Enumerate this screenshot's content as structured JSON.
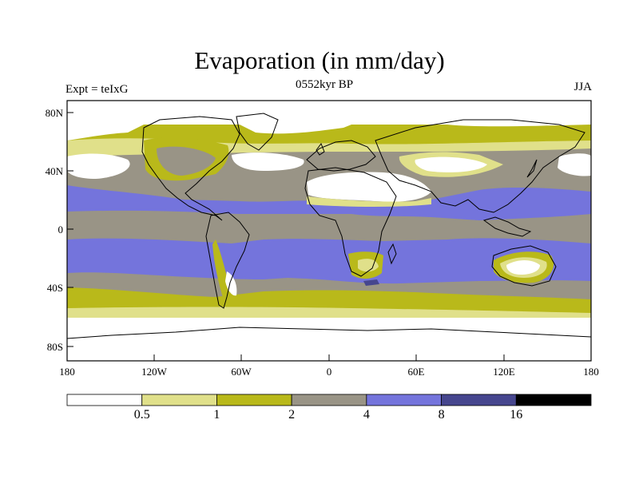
{
  "title": "Evaporation (in mm/day)",
  "subtitle": "0552kyr BP",
  "left_label": "Expt = teIxG",
  "right_label": "JJA",
  "lat_ticks": [
    "80N",
    "40N",
    "0",
    "40S",
    "80S"
  ],
  "lon_ticks": [
    "180",
    "120W",
    "60W",
    "0",
    "60E",
    "120E",
    "180"
  ],
  "colorbar": {
    "labels": [
      "0.5",
      "1",
      "2",
      "4",
      "8",
      "16"
    ],
    "colors": [
      "#ffffff",
      "#e0e08a",
      "#b9b91a",
      "#999486",
      "#7474dc",
      "#46468e",
      "#000000"
    ]
  },
  "legend_levels": [
    0.5,
    1,
    2,
    4,
    8,
    16
  ]
}
